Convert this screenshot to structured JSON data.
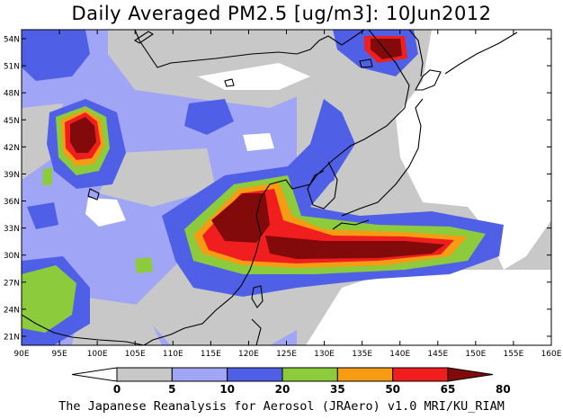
{
  "title": "Daily Averaged PM2.5 [ug/m3]: 10Jun2012",
  "axes": {
    "lat_labels": [
      "54N",
      "51N",
      "48N",
      "45N",
      "42N",
      "39N",
      "36N",
      "33N",
      "30N",
      "27N",
      "24N",
      "21N"
    ],
    "lat_values": [
      54,
      51,
      48,
      45,
      42,
      39,
      36,
      33,
      30,
      27,
      24,
      21
    ],
    "lon_labels": [
      "90E",
      "95E",
      "100E",
      "105E",
      "110E",
      "115E",
      "120E",
      "125E",
      "130E",
      "135E",
      "140E",
      "145E",
      "150E",
      "155E",
      "160E"
    ],
    "lon_values": [
      90,
      95,
      100,
      105,
      110,
      115,
      120,
      125,
      130,
      135,
      140,
      145,
      150,
      155,
      160
    ],
    "lon_range": [
      90,
      160
    ],
    "lat_range": [
      20,
      55
    ]
  },
  "colorbar": {
    "ticks": [
      "0",
      "5",
      "10",
      "20",
      "35",
      "50",
      "65",
      "80"
    ],
    "colors": [
      "#ffffff",
      "#c8c8c8",
      "#a0a5f5",
      "#5060e6",
      "#8ccc3c",
      "#f59b14",
      "#f01e1e",
      "#820a0a"
    ]
  },
  "palette": {
    "gray": "#c8c8c8",
    "lightblue": "#a0a5f5",
    "blue": "#5060e6",
    "green": "#8ccc3c",
    "orange": "#f59b14",
    "red": "#f01e1e",
    "darkred": "#820a0a"
  },
  "credit": "The Japanese Reanalysis for Aerosol (JRAero) v1.0 MRI/KU_RIAM"
}
